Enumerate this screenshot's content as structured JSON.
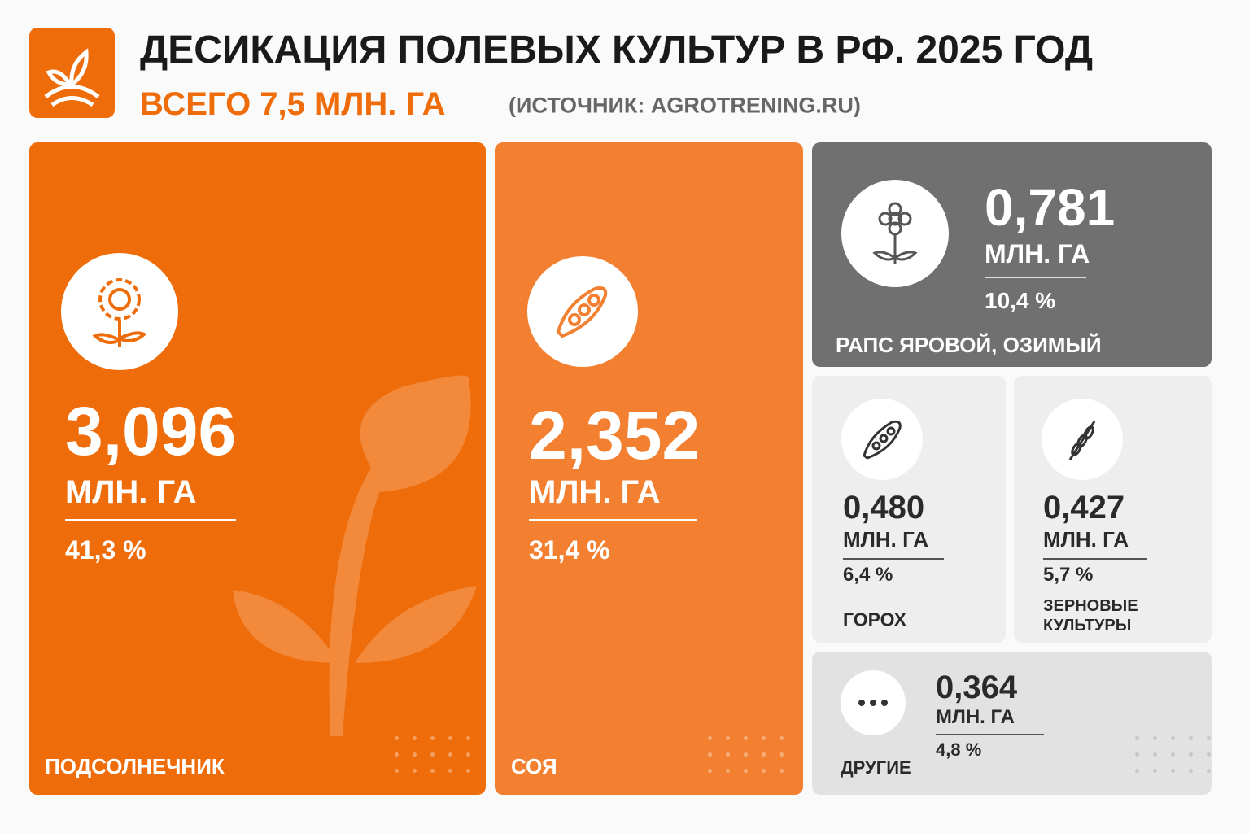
{
  "header": {
    "title": "ДЕСИКАЦИЯ ПОЛЕВЫХ КУЛЬТУР В РФ. 2025 ГОД",
    "total": "ВСЕГО 7,5 МЛН. ГА",
    "source": "(ИСТОЧНИК: AGROTRENING.RU)"
  },
  "tiles": [
    {
      "value": "3,096",
      "unit": "МЛН. ГА",
      "share": "41,3 %",
      "name": "ПОДСОЛНЕЧНИК"
    },
    {
      "value": "2,352",
      "unit": "МЛН. ГА",
      "share": "31,4 %",
      "name": "СОЯ"
    },
    {
      "value": "0,781",
      "unit": "МЛН. ГА",
      "share": "10,4 %",
      "name": "РАПС ЯРОВОЙ, ОЗИМЫЙ"
    },
    {
      "value": "0,480",
      "unit": "МЛН. ГА",
      "share": "6,4 %",
      "name": "ГОРОХ"
    },
    {
      "value": "0,427",
      "unit": "МЛН. ГА",
      "share": "5,7 %",
      "name": "ЗЕРНОВЫЕ КУЛЬТУРЫ"
    },
    {
      "value": "0,364",
      "unit": "МЛН. ГА",
      "share": "4,8 %",
      "name": "ДРУГИЕ"
    }
  ]
}
